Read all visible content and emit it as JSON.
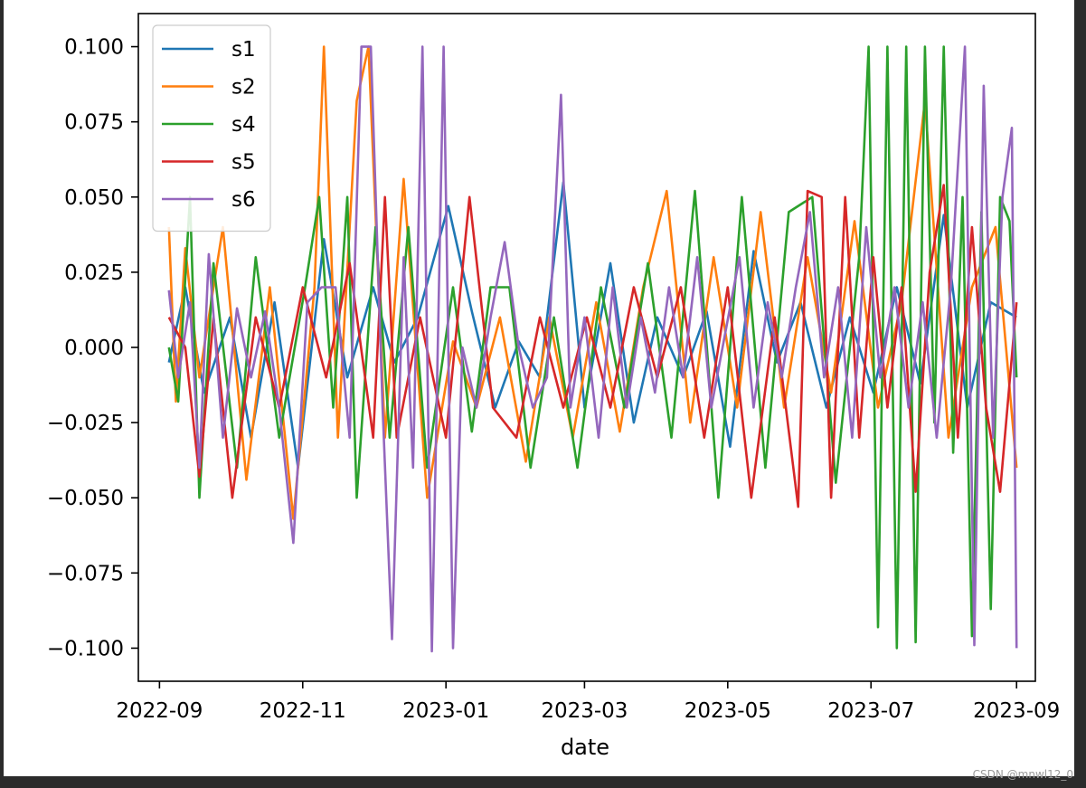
{
  "watermark": "CSDN @mnwl12_0",
  "chart_data": {
    "type": "line",
    "xlabel": "date",
    "ylabel": "",
    "xlim": [
      "2022-08-23",
      "2023-09-09"
    ],
    "ylim": [
      -0.111,
      0.111
    ],
    "xticks": [
      "2022-09",
      "2022-11",
      "2023-01",
      "2023-03",
      "2023-05",
      "2023-07",
      "2023-09"
    ],
    "yticks": [
      0.1,
      0.075,
      0.05,
      0.025,
      0.0,
      -0.025,
      -0.05,
      -0.075,
      -0.1
    ],
    "ytick_labels": [
      "0.100",
      "0.075",
      "0.050",
      "0.025",
      "0.000",
      "−0.025",
      "−0.050",
      "−0.075",
      "−0.100"
    ],
    "legend_position": "top-left",
    "grid": false,
    "series": [
      {
        "name": "s1",
        "color": "#1f77b4",
        "x": [
          "2022-09-05",
          "2022-09-12",
          "2022-09-20",
          "2022-10-01",
          "2022-10-10",
          "2022-10-20",
          "2022-10-30",
          "2022-11-10",
          "2022-11-20",
          "2022-12-01",
          "2022-12-10",
          "2022-12-20",
          "2023-01-02",
          "2023-01-12",
          "2023-01-22",
          "2023-02-01",
          "2023-02-10",
          "2023-02-20",
          "2023-03-01",
          "2023-03-12",
          "2023-03-22",
          "2023-04-01",
          "2023-04-12",
          "2023-04-22",
          "2023-05-02",
          "2023-05-12",
          "2023-05-22",
          "2023-06-01",
          "2023-06-12",
          "2023-06-22",
          "2023-07-02",
          "2023-07-12",
          "2023-07-22",
          "2023-08-01",
          "2023-08-11",
          "2023-08-21",
          "2023-09-01"
        ],
        "y": [
          -0.005,
          0.02,
          -0.015,
          0.01,
          -0.03,
          0.015,
          -0.04,
          0.036,
          -0.01,
          0.02,
          -0.005,
          0.01,
          0.047,
          0.012,
          -0.02,
          0.002,
          -0.01,
          0.055,
          -0.02,
          0.028,
          -0.025,
          0.01,
          -0.01,
          0.012,
          -0.033,
          0.032,
          -0.005,
          0.015,
          -0.02,
          0.01,
          -0.015,
          0.02,
          -0.012,
          0.044,
          -0.02,
          0.015,
          0.01
        ]
      },
      {
        "name": "s2",
        "color": "#ff7f0e",
        "x": [
          "2022-09-05",
          "2022-09-08",
          "2022-09-12",
          "2022-09-18",
          "2022-09-28",
          "2022-10-08",
          "2022-10-18",
          "2022-10-28",
          "2022-11-06",
          "2022-11-10",
          "2022-11-16",
          "2022-11-24",
          "2022-11-29",
          "2022-12-06",
          "2022-12-14",
          "2022-12-24",
          "2023-01-04",
          "2023-01-14",
          "2023-01-24",
          "2023-02-04",
          "2023-02-14",
          "2023-02-24",
          "2023-03-06",
          "2023-03-16",
          "2023-03-26",
          "2023-04-05",
          "2023-04-15",
          "2023-04-25",
          "2023-05-05",
          "2023-05-15",
          "2023-05-25",
          "2023-06-04",
          "2023-06-14",
          "2023-06-24",
          "2023-07-04",
          "2023-07-14",
          "2023-07-24",
          "2023-08-03",
          "2023-08-13",
          "2023-08-23",
          "2023-09-01"
        ],
        "y": [
          0.04,
          -0.018,
          0.033,
          -0.01,
          0.04,
          -0.044,
          0.02,
          -0.057,
          0.02,
          0.1,
          -0.03,
          0.082,
          0.1,
          -0.03,
          0.056,
          -0.05,
          0.002,
          -0.02,
          0.01,
          -0.038,
          0.01,
          -0.03,
          0.015,
          -0.028,
          0.02,
          0.052,
          -0.025,
          0.03,
          -0.02,
          0.045,
          -0.02,
          0.03,
          -0.015,
          0.042,
          -0.02,
          0.015,
          0.082,
          -0.03,
          0.02,
          0.04,
          -0.04
        ]
      },
      {
        "name": "s4",
        "color": "#2ca02c",
        "x": [
          "2022-09-05",
          "2022-09-09",
          "2022-09-14",
          "2022-09-18",
          "2022-09-24",
          "2022-10-04",
          "2022-10-12",
          "2022-10-22",
          "2022-11-02",
          "2022-11-08",
          "2022-11-14",
          "2022-11-20",
          "2022-11-24",
          "2022-12-02",
          "2022-12-08",
          "2022-12-16",
          "2022-12-24",
          "2023-01-04",
          "2023-01-12",
          "2023-01-20",
          "2023-01-28",
          "2023-02-06",
          "2023-02-16",
          "2023-02-26",
          "2023-03-08",
          "2023-03-18",
          "2023-03-28",
          "2023-04-07",
          "2023-04-17",
          "2023-04-27",
          "2023-05-07",
          "2023-05-17",
          "2023-05-27",
          "2023-06-06",
          "2023-06-16",
          "2023-06-26",
          "2023-06-30",
          "2023-07-04",
          "2023-07-08",
          "2023-07-12",
          "2023-07-16",
          "2023-07-20",
          "2023-07-24",
          "2023-07-28",
          "2023-08-01",
          "2023-08-05",
          "2023-08-09",
          "2023-08-13",
          "2023-08-17",
          "2023-08-21",
          "2023-08-25",
          "2023-08-29",
          "2023-09-01"
        ],
        "y": [
          0.0,
          -0.018,
          0.05,
          -0.05,
          0.028,
          -0.04,
          0.03,
          -0.03,
          0.02,
          0.05,
          -0.02,
          0.05,
          -0.05,
          0.04,
          -0.03,
          0.04,
          -0.04,
          0.02,
          -0.028,
          0.02,
          0.02,
          -0.04,
          0.01,
          -0.04,
          0.02,
          -0.02,
          0.028,
          -0.03,
          0.052,
          -0.05,
          0.05,
          -0.04,
          0.045,
          0.05,
          -0.045,
          0.03,
          0.1,
          -0.093,
          0.1,
          -0.1,
          0.1,
          -0.098,
          0.1,
          -0.025,
          0.1,
          -0.035,
          0.05,
          -0.096,
          0.045,
          -0.087,
          0.05,
          0.042,
          -0.01
        ]
      },
      {
        "name": "s5",
        "color": "#d62728",
        "x": [
          "2022-09-05",
          "2022-09-12",
          "2022-09-18",
          "2022-09-24",
          "2022-10-02",
          "2022-10-12",
          "2022-10-22",
          "2022-11-01",
          "2022-11-11",
          "2022-11-21",
          "2022-12-01",
          "2022-12-06",
          "2022-12-11",
          "2022-12-21",
          "2023-01-01",
          "2023-01-11",
          "2023-01-21",
          "2023-01-31",
          "2023-02-10",
          "2023-02-20",
          "2023-03-02",
          "2023-03-12",
          "2023-03-22",
          "2023-04-01",
          "2023-04-11",
          "2023-04-21",
          "2023-05-01",
          "2023-05-11",
          "2023-05-21",
          "2023-05-31",
          "2023-06-04",
          "2023-06-10",
          "2023-06-14",
          "2023-06-20",
          "2023-06-26",
          "2023-07-02",
          "2023-07-08",
          "2023-07-14",
          "2023-07-20",
          "2023-07-26",
          "2023-08-01",
          "2023-08-07",
          "2023-08-13",
          "2023-08-19",
          "2023-08-25",
          "2023-09-01"
        ],
        "y": [
          0.01,
          0.0,
          -0.043,
          0.01,
          -0.05,
          0.01,
          -0.02,
          0.02,
          -0.01,
          0.028,
          -0.03,
          0.05,
          -0.03,
          0.01,
          -0.03,
          0.05,
          -0.02,
          -0.03,
          0.01,
          -0.02,
          0.01,
          -0.02,
          0.02,
          -0.01,
          0.02,
          -0.03,
          0.02,
          -0.05,
          0.01,
          -0.053,
          0.052,
          0.05,
          -0.05,
          0.05,
          -0.03,
          0.03,
          -0.02,
          0.02,
          -0.048,
          0.025,
          0.054,
          -0.03,
          0.04,
          -0.02,
          -0.048,
          0.015
        ]
      },
      {
        "name": "s6",
        "color": "#9467bd",
        "x": [
          "2022-09-05",
          "2022-09-09",
          "2022-09-14",
          "2022-09-18",
          "2022-09-22",
          "2022-09-28",
          "2022-10-04",
          "2022-10-10",
          "2022-10-16",
          "2022-10-22",
          "2022-10-28",
          "2022-11-03",
          "2022-11-09",
          "2022-11-15",
          "2022-11-21",
          "2022-11-26",
          "2022-11-30",
          "2022-12-05",
          "2022-12-09",
          "2022-12-14",
          "2022-12-18",
          "2022-12-22",
          "2022-12-26",
          "2022-12-31",
          "2023-01-04",
          "2023-01-08",
          "2023-01-14",
          "2023-01-20",
          "2023-01-26",
          "2023-02-01",
          "2023-02-07",
          "2023-02-13",
          "2023-02-19",
          "2023-02-23",
          "2023-03-01",
          "2023-03-07",
          "2023-03-13",
          "2023-03-19",
          "2023-03-25",
          "2023-03-31",
          "2023-04-06",
          "2023-04-12",
          "2023-04-18",
          "2023-04-24",
          "2023-04-30",
          "2023-05-06",
          "2023-05-12",
          "2023-05-18",
          "2023-05-24",
          "2023-05-30",
          "2023-06-05",
          "2023-06-11",
          "2023-06-17",
          "2023-06-23",
          "2023-06-29",
          "2023-07-05",
          "2023-07-11",
          "2023-07-17",
          "2023-07-23",
          "2023-07-29",
          "2023-08-04",
          "2023-08-10",
          "2023-08-14",
          "2023-08-18",
          "2023-08-22",
          "2023-08-26",
          "2023-08-30",
          "2023-09-01"
        ],
        "y": [
          0.019,
          -0.01,
          0.015,
          -0.04,
          0.031,
          -0.03,
          0.013,
          -0.01,
          0.012,
          -0.02,
          -0.065,
          0.015,
          0.02,
          0.02,
          -0.03,
          0.1,
          0.1,
          -0.02,
          -0.097,
          0.03,
          -0.04,
          0.1,
          -0.101,
          0.1,
          -0.1,
          0.0,
          -0.02,
          0.01,
          0.035,
          0.0,
          -0.02,
          -0.01,
          0.084,
          -0.02,
          0.01,
          -0.03,
          0.02,
          -0.02,
          0.01,
          -0.015,
          0.02,
          -0.01,
          0.03,
          -0.02,
          0.005,
          0.03,
          -0.02,
          0.015,
          -0.01,
          0.02,
          0.045,
          -0.01,
          0.02,
          -0.03,
          0.04,
          -0.01,
          0.02,
          -0.02,
          0.015,
          -0.03,
          0.02,
          0.1,
          -0.099,
          0.087,
          -0.03,
          0.05,
          0.073,
          -0.1
        ]
      }
    ]
  }
}
